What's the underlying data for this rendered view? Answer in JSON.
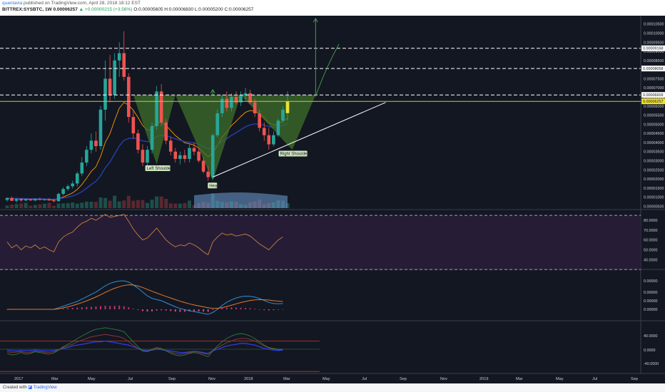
{
  "header": {
    "author": "quantavia",
    "published": "published on TradingView.com, April 28, 2018 18:12 EST",
    "symbol": "BITTREX:SYSBTC, 1W",
    "last": "0.00006257",
    "change": "▲ +0.00000215 (+3.56%)",
    "ohlc": "O:0.00005605 H:0.00006830 L:0.00005200 C:0.00006257"
  },
  "footer": {
    "created_with": "Created with",
    "brand": "TradingView"
  },
  "colors": {
    "up": "#26a69a",
    "down": "#ef5350",
    "volume": "#6e9fd6",
    "pattern_fill": "#3e6f2a",
    "neckline": "#b5b833",
    "target": "#4caf50",
    "last_price": "#f0e130"
  },
  "chart_data": [
    {
      "type": "candlestick",
      "title": "",
      "x_ticks": [
        "2017",
        "Mar",
        "May",
        "Jul",
        "Sep",
        "Nov",
        "2018",
        "Mar",
        "May",
        "Jul",
        "Sep",
        "Nov",
        "2019",
        "Mar",
        "May",
        "Jul",
        "Sep"
      ],
      "y_ticks": [
        "0.00010500",
        "0.00010000",
        "0.00009500",
        "0.00009000",
        "0.00008500",
        "0.00008000",
        "0.00007500",
        "0.00007000",
        "0.00006500",
        "0.00006000",
        "0.00005500",
        "0.00005000",
        "0.00004500",
        "0.00004000",
        "0.00003500",
        "0.00003000",
        "0.00002500",
        "0.00002000",
        "0.00001500",
        "0.00001000",
        "0.00000500"
      ],
      "ylim": [
        4e-06,
        0.000108
      ],
      "weeks": 69,
      "candles": [
        [
          8.5e-06,
          1e-05,
          7.5e-06,
          9.5e-06
        ],
        [
          9.5e-06,
          1.05e-05,
          8e-06,
          8e-06
        ],
        [
          8e-06,
          9.5e-06,
          7e-06,
          9e-06
        ],
        [
          9e-06,
          9.5e-06,
          7.5e-06,
          8.2e-06
        ],
        [
          8.2e-06,
          9.2e-06,
          7.8e-06,
          8.8e-06
        ],
        [
          8.8e-06,
          9.2e-06,
          8e-06,
          8.2e-06
        ],
        [
          8.2e-06,
          9.5e-06,
          7.8e-06,
          9e-06
        ],
        [
          9e-06,
          9.8e-06,
          8.2e-06,
          8.5e-06
        ],
        [
          8.5e-06,
          9.2e-06,
          8e-06,
          8.8e-06
        ],
        [
          8.8e-06,
          9.5e-06,
          8e-06,
          8.2e-06
        ],
        [
          8.2e-06,
          8.8e-06,
          7.2e-06,
          7.8e-06
        ],
        [
          7.8e-06,
          1.25e-05,
          7.5e-06,
          1.18e-05
        ],
        [
          1.18e-05,
          1.55e-05,
          1.1e-05,
          1.45e-05
        ],
        [
          1.45e-05,
          1.7e-05,
          1.35e-05,
          1.6e-05
        ],
        [
          1.6e-05,
          1.9e-05,
          1.48e-05,
          1.75e-05
        ],
        [
          1.75e-05,
          2.4e-05,
          1.6e-05,
          2.3e-05
        ],
        [
          2.3e-05,
          3.2e-05,
          2.15e-05,
          2.9e-05
        ],
        [
          2.9e-05,
          3.8e-05,
          2.7e-05,
          3.6e-05
        ],
        [
          3.6e-05,
          4.5e-05,
          3.4e-05,
          4.1e-05
        ],
        [
          4.1e-05,
          4.6e-05,
          3.5e-05,
          3.8e-05
        ],
        [
          3.8e-05,
          6e-05,
          3.6e-05,
          5.8e-05
        ],
        [
          5.8e-05,
          8.5e-05,
          5.2e-05,
          7.5e-05
        ],
        [
          7.5e-05,
          8.8e-05,
          6.2e-05,
          6.6e-05
        ],
        [
          6.6e-05,
          8.9e-05,
          6.4e-05,
          8.5e-05
        ],
        [
          8.5e-05,
          9.5e-05,
          7.6e-05,
          8.9e-05
        ],
        [
          8.9e-05,
          0.000101,
          7.4e-05,
          7.6e-05
        ],
        [
          7.6e-05,
          7.8e-05,
          5.1e-05,
          5.4e-05
        ],
        [
          5.4e-05,
          5.8e-05,
          4.2e-05,
          4.5e-05
        ],
        [
          4.5e-05,
          4.7e-05,
          3.4e-05,
          3.6e-05
        ],
        [
          3.6e-05,
          3.9e-05,
          2.7e-05,
          2.9e-05
        ],
        [
          2.9e-05,
          3.8e-05,
          2.7e-05,
          3.6e-05
        ],
        [
          3.6e-05,
          5.1e-05,
          3.4e-05,
          4.9e-05
        ],
        [
          4.9e-05,
          7.1e-05,
          4.7e-05,
          6.8e-05
        ],
        [
          6.8e-05,
          7.2e-05,
          4.9e-05,
          5.1e-05
        ],
        [
          5.1e-05,
          5.3e-05,
          3.9e-05,
          4.1e-05
        ],
        [
          4.1e-05,
          4.3e-05,
          3.3e-05,
          3.5e-05
        ],
        [
          3.5e-05,
          3.7e-05,
          2.9e-05,
          3.1e-05
        ],
        [
          3.1e-05,
          3.5e-05,
          2.8e-05,
          3.3e-05
        ],
        [
          3.3e-05,
          3.6e-05,
          2.9e-05,
          3.1e-05
        ],
        [
          3.1e-05,
          3.9e-05,
          2.9e-05,
          3.7e-05
        ],
        [
          3.7e-05,
          4e-05,
          3.3e-05,
          3.5e-05
        ],
        [
          3.5e-05,
          3.7e-05,
          2.9e-05,
          3e-05
        ],
        [
          3e-05,
          3.2e-05,
          2.3e-05,
          2.4e-05
        ],
        [
          2.4e-05,
          2.7e-05,
          1.9e-05,
          2.1e-05
        ],
        [
          2.1e-05,
          4.5e-05,
          2e-05,
          4.4e-05
        ],
        [
          4.4e-05,
          5.8e-05,
          4.3e-05,
          5.6e-05
        ],
        [
          5.6e-05,
          6.6e-05,
          5.4e-05,
          6.4e-05
        ],
        [
          6.4e-05,
          6.8e-05,
          5.7e-05,
          5.9e-05
        ],
        [
          5.9e-05,
          6.7e-05,
          5.7e-05,
          6.5e-05
        ],
        [
          6.5e-05,
          6.8e-05,
          6.1e-05,
          6.2e-05
        ],
        [
          6.2e-05,
          6.8e-05,
          6e-05,
          6.6e-05
        ],
        [
          6.6e-05,
          7e-05,
          6.3e-05,
          6.7e-05
        ],
        [
          6.7e-05,
          6.9e-05,
          6.1e-05,
          6.2e-05
        ],
        [
          6.2e-05,
          6.4e-05,
          5.4e-05,
          5.6e-05
        ],
        [
          5.6e-05,
          5.8e-05,
          4.6e-05,
          4.8e-05
        ],
        [
          4.8e-05,
          5.1e-05,
          4.1e-05,
          4.4e-05
        ],
        [
          4.4e-05,
          4.8e-05,
          3.6e-05,
          3.9e-05
        ],
        [
          3.9e-05,
          4.6e-05,
          3.8e-05,
          4.4e-05
        ],
        [
          4.4e-05,
          5.3e-05,
          4.3e-05,
          5.2e-05
        ],
        [
          5.2e-05,
          6e-05,
          5.1e-05,
          5.8e-05
        ],
        [
          5.61e-05,
          6.8e-05,
          5.2e-05,
          6.257e-05
        ]
      ],
      "annotations": [
        "Left Shoulder",
        "Head",
        "Right Shoulder"
      ],
      "price_labels": {
        "last": "0.00006257",
        "neckline": "0.00006609",
        "level_1": "0.00008058",
        "level_2": "0.00009168"
      }
    },
    {
      "type": "line",
      "y_ticks": [
        "80.0000",
        "70.0000",
        "60.0000",
        "50.0000",
        "40.0000"
      ],
      "ylim": [
        33,
        88
      ],
      "levels": [
        85,
        30
      ],
      "values": [
        58,
        52,
        55,
        50,
        54,
        52,
        55,
        51,
        53,
        50,
        48,
        58,
        63,
        66,
        68,
        73,
        77,
        79,
        82,
        80,
        83,
        86,
        83,
        84,
        85,
        86,
        79,
        71,
        65,
        60,
        62,
        67,
        72,
        66,
        60,
        56,
        53,
        55,
        54,
        57,
        55,
        52,
        48,
        45,
        58,
        63,
        67,
        65,
        66,
        64,
        65,
        66,
        64,
        60,
        56,
        53,
        50,
        55,
        60,
        63
      ]
    },
    {
      "type": "line",
      "y_ticks": [
        "0.00000",
        "0.00000",
        "0.00000",
        "0.00000"
      ],
      "histogram": [
        0,
        0,
        0,
        0.1,
        0.1,
        0,
        0,
        0.1,
        0,
        0,
        0,
        0.3,
        0.5,
        0.7,
        0.9,
        1.1,
        1.3,
        1.5,
        1.6,
        1.8,
        2,
        2.3,
        2.1,
        2.2,
        2.4,
        2,
        1.3,
        0.4,
        -0.4,
        -1.1,
        -1.4,
        -1.3,
        -0.8,
        -0.6,
        -0.8,
        -1.1,
        -1.4,
        -1.6,
        -1.5,
        -1.3,
        -1.2,
        -1.3,
        -1.4,
        -1.6,
        -0.5,
        0.3,
        0.9,
        1.1,
        1.2,
        1.1,
        1,
        0.9,
        0.7,
        0.4,
        -0.1,
        -0.5,
        -0.7,
        -0.5,
        -0.2,
        0.1
      ],
      "series_a": [
        0,
        0,
        0,
        0,
        0,
        0,
        0,
        0,
        0,
        0,
        0,
        1,
        2,
        3,
        4,
        5,
        6.5,
        8,
        9.5,
        11,
        13,
        15,
        16.5,
        17.5,
        18,
        18.2,
        17.4,
        15.5,
        13.5,
        11,
        8.6,
        7,
        6.2,
        5.5,
        4.2,
        2.9,
        1.6,
        0.6,
        -0.2,
        -0.9,
        -1.4,
        -2,
        -2.6,
        -3.2,
        -2,
        0,
        2.5,
        4.5,
        6,
        7.2,
        8,
        8.4,
        8.3,
        7.8,
        6.9,
        5.6,
        4.4,
        3.7,
        3.5,
        3.7
      ],
      "series_b": [
        0,
        0,
        0,
        0,
        0,
        0,
        0,
        0,
        0,
        0,
        0,
        0.3,
        0.9,
        1.6,
        2.4,
        3.3,
        4.3,
        5.4,
        6.6,
        7.9,
        9.3,
        10.8,
        12.2,
        13.4,
        14.4,
        15.2,
        15.6,
        15.5,
        14.9,
        13.9,
        12.7,
        11.5,
        10.4,
        9.3,
        8.2,
        7.2,
        6.2,
        5.2,
        4.3,
        3.5,
        2.8,
        2.2,
        1.6,
        1,
        0.6,
        0.6,
        1.1,
        1.8,
        2.6,
        3.5,
        4.3,
        5,
        5.6,
        6,
        6.2,
        6.1,
        5.9,
        5.5,
        5.2,
        5
      ]
    },
    {
      "type": "line",
      "y_ticks": [
        "40.0000",
        "0.0000",
        "-40.0000"
      ],
      "series_a": [
        -10,
        -14,
        -12,
        -8,
        -12,
        -10,
        -6,
        -8,
        -10,
        -12,
        -9,
        -2,
        6,
        12,
        18,
        26,
        32,
        38,
        44,
        48,
        50,
        52,
        50,
        48,
        46,
        42,
        30,
        18,
        6,
        -4,
        -6,
        0,
        4,
        2,
        -4,
        -10,
        -14,
        -16,
        -14,
        -10,
        -8,
        -10,
        -14,
        -18,
        -4,
        8,
        18,
        26,
        32,
        36,
        38,
        36,
        32,
        26,
        18,
        10,
        4,
        2,
        0,
        0
      ],
      "series_b": [
        -6,
        -8,
        -7,
        -6,
        -8,
        -7,
        -5,
        -6,
        -7,
        -8,
        -6,
        -2,
        4,
        8,
        12,
        18,
        22,
        26,
        30,
        32,
        34,
        36,
        34,
        32,
        30,
        26,
        18,
        10,
        2,
        -4,
        -5,
        -2,
        2,
        0,
        -3,
        -7,
        -10,
        -12,
        -10,
        -8,
        -6,
        -7,
        -10,
        -12,
        -3,
        4,
        10,
        16,
        20,
        24,
        26,
        26,
        24,
        20,
        14,
        8,
        3,
        1,
        -1,
        -1
      ],
      "series_c": [
        -2,
        -4,
        -4,
        -3,
        -4,
        -3,
        -2,
        -3,
        -4,
        -4,
        -3,
        -1,
        2,
        4,
        8,
        10,
        12,
        14,
        16,
        18,
        18,
        20,
        18,
        16,
        14,
        12,
        10,
        6,
        2,
        -2,
        -3,
        -2,
        0,
        -1,
        -3,
        -4,
        -6,
        -8,
        -8,
        -6,
        -5,
        -6,
        -8,
        -10,
        -4,
        0,
        4,
        8,
        10,
        12,
        14,
        14,
        12,
        10,
        6,
        2,
        0,
        -2,
        -3,
        -2
      ]
    }
  ]
}
